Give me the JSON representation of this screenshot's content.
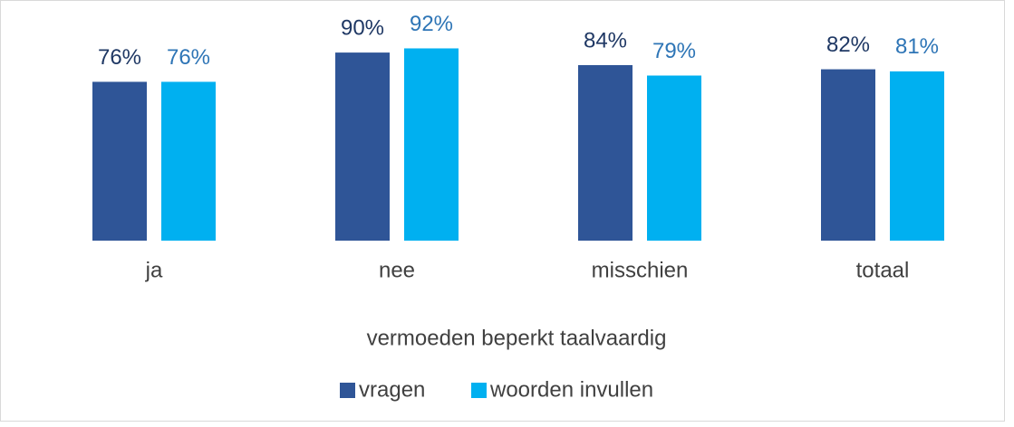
{
  "chart_data": {
    "type": "bar",
    "categories": [
      "ja",
      "nee",
      "misschien",
      "totaal"
    ],
    "x_label": "vermoeden beperkt taalvaardig",
    "series": [
      {
        "name": "vragen",
        "color": "#2f5597",
        "values": [
          76,
          90,
          84,
          82
        ],
        "value_labels": [
          "76%",
          "90%",
          "84%",
          "82%"
        ]
      },
      {
        "name": "woorden invullen",
        "color": "#00b0f0",
        "values": [
          76,
          92,
          79,
          81
        ],
        "value_labels": [
          "76%",
          "92%",
          "79%",
          "81%"
        ]
      }
    ],
    "legend": "bottom"
  }
}
